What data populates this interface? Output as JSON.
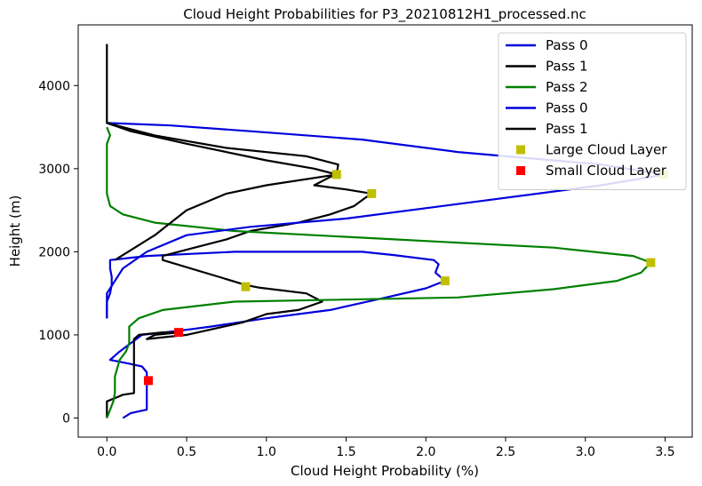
{
  "chart_data": {
    "type": "line",
    "title": "Cloud Height Probabilities for P3_20210812H1_processed.nc",
    "xlabel": "Cloud Height Probability (%)",
    "ylabel": "Height (m)",
    "xlim": [
      -0.18,
      3.67
    ],
    "ylim": [
      -230,
      4730
    ],
    "xticks": [
      0.0,
      0.5,
      1.0,
      1.5,
      2.0,
      2.5,
      3.0,
      3.5
    ],
    "xtick_labels": [
      "0.0",
      "0.5",
      "1.0",
      "1.5",
      "2.0",
      "2.5",
      "3.0",
      "3.5"
    ],
    "yticks": [
      0,
      1000,
      2000,
      3000,
      4000
    ],
    "ytick_labels": [
      "0",
      "1000",
      "2000",
      "3000",
      "4000"
    ],
    "grid": false,
    "legend_position": "top-right",
    "series": [
      {
        "name": "Pass 0",
        "color": "#0000dd",
        "points": [
          [
            0.1,
            0
          ],
          [
            0.15,
            60
          ],
          [
            0.25,
            100
          ],
          [
            0.25,
            400
          ],
          [
            0.25,
            550
          ],
          [
            0.22,
            620
          ],
          [
            0.15,
            650
          ],
          [
            0.02,
            700
          ],
          [
            0.08,
            800
          ],
          [
            0.15,
            900
          ],
          [
            0.22,
            1000
          ],
          [
            0.45,
            1050
          ],
          [
            0.65,
            1100
          ],
          [
            1.0,
            1200
          ],
          [
            1.4,
            1300
          ],
          [
            1.75,
            1450
          ],
          [
            2.0,
            1560
          ],
          [
            2.12,
            1650
          ],
          [
            2.06,
            1750
          ],
          [
            2.08,
            1850
          ],
          [
            2.05,
            1900
          ],
          [
            1.8,
            1960
          ],
          [
            1.6,
            2000
          ],
          [
            0.8,
            2000
          ],
          [
            0.25,
            1950
          ],
          [
            0.02,
            1900
          ],
          [
            0.02,
            1800
          ],
          [
            0.03,
            1700
          ],
          [
            0.03,
            1600
          ],
          [
            0.02,
            1500
          ],
          [
            0.0,
            1400
          ],
          [
            0.0,
            1200
          ]
        ]
      },
      {
        "name": "Pass 1",
        "color": "#000000",
        "points": [
          [
            0.0,
            0
          ],
          [
            0.0,
            200
          ],
          [
            0.1,
            280
          ],
          [
            0.17,
            300
          ],
          [
            0.17,
            500
          ],
          [
            0.17,
            700
          ],
          [
            0.17,
            950
          ],
          [
            0.2,
            1000
          ],
          [
            0.35,
            1030
          ],
          [
            0.45,
            1030
          ],
          [
            0.3,
            1000
          ],
          [
            0.25,
            950
          ],
          [
            0.5,
            1000
          ],
          [
            0.85,
            1150
          ],
          [
            1.0,
            1250
          ],
          [
            1.2,
            1300
          ],
          [
            1.35,
            1400
          ],
          [
            1.25,
            1500
          ],
          [
            0.95,
            1570
          ],
          [
            0.87,
            1600
          ],
          [
            0.7,
            1700
          ],
          [
            0.35,
            1900
          ],
          [
            0.35,
            1950
          ],
          [
            0.55,
            2050
          ],
          [
            0.75,
            2150
          ],
          [
            0.9,
            2250
          ],
          [
            1.2,
            2350
          ],
          [
            1.4,
            2450
          ],
          [
            1.55,
            2550
          ],
          [
            1.62,
            2650
          ],
          [
            1.66,
            2700
          ],
          [
            1.5,
            2750
          ],
          [
            1.3,
            2800
          ],
          [
            1.4,
            2900
          ],
          [
            1.44,
            2930
          ],
          [
            1.4,
            2950
          ],
          [
            1.3,
            3000
          ],
          [
            1.0,
            3100
          ],
          [
            0.5,
            3300
          ],
          [
            0.15,
            3450
          ],
          [
            0.0,
            3550
          ],
          [
            0.0,
            4000
          ],
          [
            0.0,
            4500
          ]
        ]
      },
      {
        "name": "Pass 2",
        "color": "#008000",
        "points": [
          [
            0.0,
            0
          ],
          [
            0.04,
            200
          ],
          [
            0.05,
            300
          ],
          [
            0.05,
            500
          ],
          [
            0.08,
            700
          ],
          [
            0.12,
            800
          ],
          [
            0.14,
            900
          ],
          [
            0.14,
            1100
          ],
          [
            0.2,
            1200
          ],
          [
            0.35,
            1300
          ],
          [
            0.8,
            1400
          ],
          [
            2.2,
            1450
          ],
          [
            2.8,
            1550
          ],
          [
            3.2,
            1650
          ],
          [
            3.35,
            1750
          ],
          [
            3.41,
            1870
          ],
          [
            3.3,
            1950
          ],
          [
            2.8,
            2050
          ],
          [
            1.8,
            2150
          ],
          [
            0.8,
            2250
          ],
          [
            0.3,
            2350
          ],
          [
            0.1,
            2450
          ],
          [
            0.02,
            2550
          ],
          [
            0.0,
            2700
          ],
          [
            0.0,
            3000
          ],
          [
            0.0,
            3300
          ],
          [
            0.02,
            3400
          ],
          [
            0.0,
            3500
          ]
        ]
      },
      {
        "name": "Pass 0",
        "color": "#0000dd",
        "points": [
          [
            0.0,
            1200
          ],
          [
            0.0,
            1500
          ],
          [
            0.1,
            1800
          ],
          [
            0.25,
            2000
          ],
          [
            0.5,
            2200
          ],
          [
            0.9,
            2300
          ],
          [
            1.5,
            2400
          ],
          [
            2.3,
            2600
          ],
          [
            3.1,
            2800
          ],
          [
            3.5,
            2930
          ],
          [
            3.1,
            3050
          ],
          [
            2.2,
            3200
          ],
          [
            1.6,
            3350
          ],
          [
            0.9,
            3450
          ],
          [
            0.4,
            3520
          ],
          [
            0.0,
            3550
          ]
        ]
      },
      {
        "name": "Pass 1",
        "color": "#000000",
        "points": [
          [
            0.0,
            3550
          ],
          [
            0.3,
            3400
          ],
          [
            0.75,
            3250
          ],
          [
            1.25,
            3150
          ],
          [
            1.45,
            3050
          ],
          [
            1.44,
            2930
          ],
          [
            1.0,
            2800
          ],
          [
            0.75,
            2700
          ],
          [
            0.5,
            2500
          ],
          [
            0.3,
            2200
          ],
          [
            0.05,
            1900
          ]
        ]
      }
    ],
    "markers": [
      {
        "name": "Large Cloud Layer",
        "color": "#bfbf00",
        "points": [
          [
            1.44,
            2930
          ],
          [
            1.66,
            2700
          ],
          [
            3.49,
            2930
          ],
          [
            3.41,
            1870
          ],
          [
            2.12,
            1650
          ],
          [
            0.87,
            1580
          ]
        ]
      },
      {
        "name": "Small Cloud Layer",
        "color": "#ff0000",
        "points": [
          [
            0.45,
            1030
          ],
          [
            0.26,
            450
          ]
        ]
      }
    ],
    "legend": [
      {
        "label": "Pass 0",
        "color": "#0000dd",
        "kind": "line"
      },
      {
        "label": "Pass 1",
        "color": "#000000",
        "kind": "line"
      },
      {
        "label": "Pass 2",
        "color": "#008000",
        "kind": "line"
      },
      {
        "label": "Pass 0",
        "color": "#0000dd",
        "kind": "line"
      },
      {
        "label": "Pass 1",
        "color": "#000000",
        "kind": "line"
      },
      {
        "label": "Large Cloud Layer",
        "color": "#bfbf00",
        "kind": "marker"
      },
      {
        "label": "Small Cloud Layer",
        "color": "#ff0000",
        "kind": "marker"
      }
    ]
  }
}
